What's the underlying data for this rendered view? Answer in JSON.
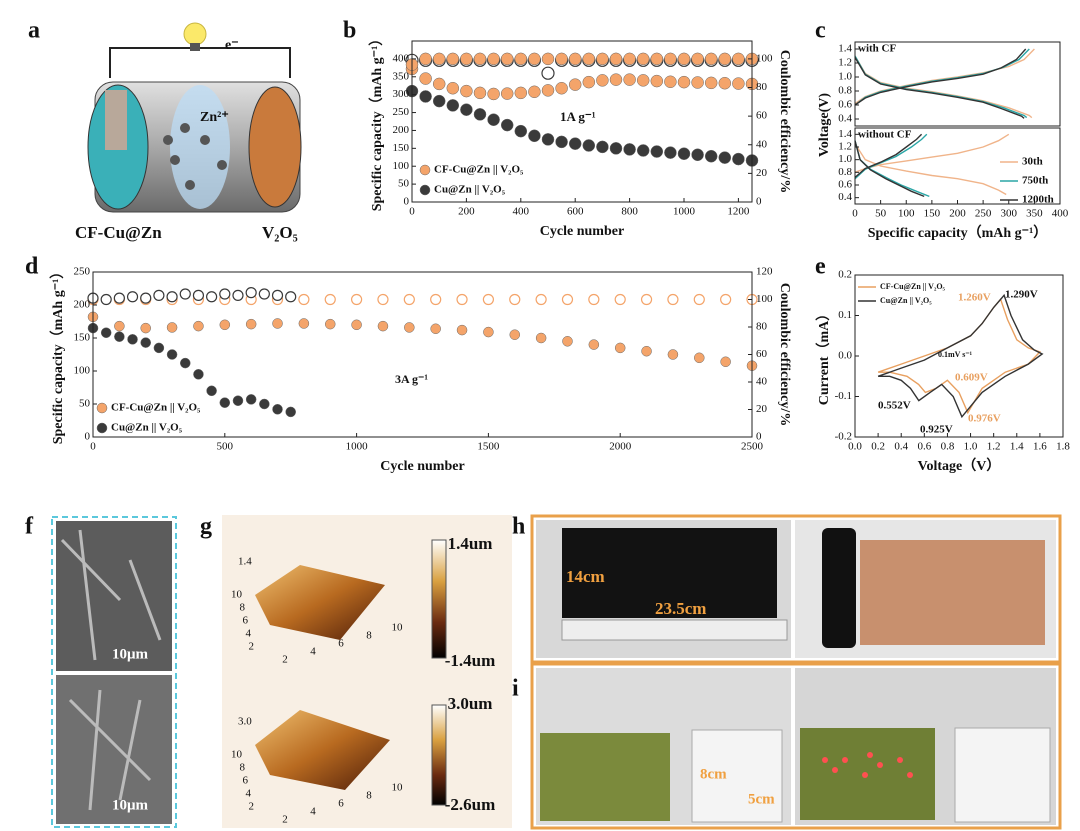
{
  "panel_labels": [
    "a",
    "b",
    "c",
    "d",
    "e",
    "f",
    "g",
    "h",
    "i"
  ],
  "diagram": {
    "electron": "e⁻",
    "ion": "Zn²⁺",
    "anode": "CF-Cu@Zn",
    "cathode": "V₂O₅"
  },
  "chart_data": [
    {
      "type": "scatter",
      "xlabel": "Cycle number",
      "ylabel": "Specific capacity（mAh g⁻¹）",
      "y2label": "Coulombic efficiency/%",
      "annotations": [
        "1A g⁻¹"
      ],
      "x": [
        0,
        50,
        100,
        150,
        200,
        250,
        300,
        350,
        400,
        450,
        500,
        550,
        600,
        650,
        700,
        750,
        800,
        850,
        900,
        950,
        1000,
        1050,
        1100,
        1150,
        1200,
        1250
      ],
      "xlim": [
        0,
        1250
      ],
      "xticks": [
        0,
        200,
        400,
        600,
        800,
        1000,
        1200
      ],
      "ylim": [
        0,
        450
      ],
      "yticks": [
        0,
        50,
        100,
        150,
        200,
        250,
        300,
        350,
        400
      ],
      "y2lim": [
        0,
        112.5
      ],
      "y2ticks": [
        0,
        20,
        40,
        60,
        80,
        100
      ],
      "series": [
        {
          "name": "CF-Cu@Zn || V₂O₅",
          "color": "#f4a46a",
          "values": [
            372,
            345,
            330,
            318,
            310,
            305,
            302,
            303,
            305,
            308,
            312,
            318,
            328,
            335,
            340,
            342,
            342,
            340,
            338,
            336,
            335,
            334,
            333,
            332,
            331,
            330
          ]
        },
        {
          "name": "Cu@Zn || V₂O₅",
          "color": "#3a3a3a",
          "values": [
            310,
            295,
            282,
            270,
            258,
            245,
            230,
            215,
            198,
            185,
            175,
            168,
            163,
            158,
            154,
            150,
            147,
            144,
            141,
            138,
            135,
            132,
            128,
            124,
            120,
            116
          ]
        },
        {
          "color": "#3a3a3a",
          "axis": "y2",
          "marker": "open",
          "values": [
            99,
            99,
            99,
            99,
            99,
            99,
            99,
            99,
            99,
            99,
            90,
            99,
            99,
            99,
            99,
            99,
            99,
            99,
            99,
            99,
            99,
            99,
            99,
            99,
            99,
            99
          ]
        },
        {
          "color": "#f4a46a",
          "axis": "y2",
          "values": [
            96,
            100,
            100,
            100,
            100,
            100,
            100,
            100,
            100,
            100,
            100,
            100,
            100,
            100,
            100,
            100,
            100,
            100,
            100,
            100,
            100,
            100,
            100,
            100,
            100,
            100
          ]
        }
      ]
    },
    {
      "type": "line",
      "label": "with CF",
      "ylabel": "Voltage(V)",
      "xlim": [
        0,
        400
      ],
      "ylim": [
        0.3,
        1.5
      ],
      "yticks": [
        0.4,
        0.6,
        0.8,
        {
          "value": 1,
          "label": "1.0"
        },
        1.2,
        1.4
      ],
      "series": [
        {
          "color": "#f0b48a",
          "x": [
            0,
            20,
            50,
            100,
            150,
            200,
            250,
            300,
            330,
            350,
            null,
            0,
            20,
            50,
            100,
            150,
            200,
            250,
            300,
            340,
            345
          ],
          "values": [
            0.62,
            0.72,
            0.8,
            0.88,
            0.95,
            1,
            1.06,
            1.15,
            1.25,
            1.4,
            null,
            1.3,
            1.05,
            0.92,
            0.84,
            0.79,
            0.73,
            0.66,
            0.56,
            0.45,
            0.42
          ]
        },
        {
          "color": "#2aa6a6",
          "x": [
            0,
            20,
            50,
            100,
            150,
            200,
            250,
            290,
            320,
            340,
            null,
            0,
            20,
            50,
            100,
            150,
            200,
            250,
            290,
            330,
            335
          ],
          "values": [
            0.6,
            0.71,
            0.79,
            0.87,
            0.94,
            0.99,
            1.05,
            1.14,
            1.25,
            1.4,
            null,
            1.3,
            1.04,
            0.91,
            0.83,
            0.78,
            0.72,
            0.65,
            0.56,
            0.45,
            0.42
          ]
        },
        {
          "color": "#333333",
          "x": [
            0,
            20,
            50,
            100,
            150,
            200,
            250,
            285,
            315,
            333,
            null,
            0,
            20,
            50,
            100,
            150,
            200,
            250,
            285,
            325,
            330
          ],
          "values": [
            0.6,
            0.7,
            0.78,
            0.86,
            0.93,
            0.98,
            1.04,
            1.13,
            1.25,
            1.4,
            null,
            1.28,
            1.03,
            0.9,
            0.82,
            0.77,
            0.71,
            0.64,
            0.55,
            0.44,
            0.41
          ]
        }
      ]
    },
    {
      "type": "line",
      "label": "without CF",
      "xlabel": "Specific capacity（mAh g⁻¹）",
      "xlim": [
        0,
        400
      ],
      "xticks": [
        0,
        50,
        100,
        150,
        200,
        250,
        300,
        350,
        400
      ],
      "ylim": [
        0.3,
        1.5
      ],
      "yticks": [
        0.4,
        0.6,
        0.8,
        {
          "value": 1,
          "label": "1.0"
        },
        1.2,
        1.4
      ],
      "series": [
        {
          "name": "30th",
          "color": "#f0b48a",
          "x": [
            0,
            20,
            50,
            100,
            150,
            200,
            250,
            280,
            300,
            null,
            0,
            20,
            50,
            100,
            150,
            200,
            250,
            280,
            295
          ],
          "values": [
            0.8,
            0.86,
            0.92,
            0.98,
            1.04,
            1.1,
            1.2,
            1.3,
            1.4,
            null,
            1.25,
            1,
            0.9,
            0.82,
            0.75,
            0.7,
            0.62,
            0.52,
            0.45
          ]
        },
        {
          "name": "750th",
          "color": "#2aa6a6",
          "x": [
            0,
            20,
            50,
            80,
            110,
            130,
            140,
            null,
            0,
            10,
            30,
            60,
            90,
            120,
            145
          ],
          "values": [
            0.7,
            0.85,
            0.95,
            1.05,
            1.2,
            1.32,
            1.4,
            null,
            1.3,
            1,
            0.85,
            0.72,
            0.6,
            0.5,
            0.42
          ]
        },
        {
          "name": "1200th",
          "color": "#333333",
          "x": [
            0,
            20,
            50,
            80,
            100,
            120,
            130,
            null,
            0,
            10,
            30,
            60,
            90,
            110,
            135
          ],
          "values": [
            0.72,
            0.86,
            0.96,
            1.08,
            1.2,
            1.32,
            1.4,
            null,
            1.3,
            1,
            0.84,
            0.7,
            0.58,
            0.5,
            0.42
          ]
        }
      ]
    },
    {
      "type": "scatter",
      "xlabel": "Cycle number",
      "ylabel": "Specific capacity（mAh g⁻¹）",
      "y2label": "Coulombic efficiency/%",
      "annotations": [
        "3A g⁻¹"
      ],
      "xlim": [
        0,
        2500
      ],
      "xticks": [
        0,
        500,
        1000,
        1500,
        2000,
        2500
      ],
      "ylim": [
        0,
        250
      ],
      "yticks": [
        0,
        50,
        100,
        150,
        200,
        250
      ],
      "y2lim": [
        0,
        120
      ],
      "y2ticks": [
        0,
        20,
        40,
        60,
        80,
        100,
        120
      ],
      "series": [
        {
          "name": "CF-Cu@Zn || V₂O₅",
          "color": "#f4a46a",
          "x": [
            0,
            100,
            200,
            300,
            400,
            500,
            600,
            700,
            800,
            900,
            1000,
            1100,
            1200,
            1300,
            1400,
            1500,
            1600,
            1700,
            1800,
            1900,
            2000,
            2100,
            2200,
            2300,
            2400,
            2500
          ],
          "values": [
            182,
            168,
            165,
            166,
            168,
            170,
            171,
            172,
            172,
            171,
            170,
            168,
            166,
            164,
            162,
            159,
            155,
            150,
            145,
            140,
            135,
            130,
            125,
            120,
            114,
            108
          ]
        },
        {
          "color": "#f4a46a",
          "axis": "y2",
          "marker": "open",
          "x": [
            0,
            100,
            200,
            300,
            400,
            500,
            600,
            700,
            800,
            900,
            1000,
            1100,
            1200,
            1300,
            1400,
            1500,
            1600,
            1700,
            1800,
            1900,
            2000,
            2100,
            2200,
            2300,
            2400,
            2500
          ],
          "values": [
            100,
            100,
            100,
            100,
            100,
            100,
            100,
            100,
            100,
            100,
            100,
            100,
            100,
            100,
            100,
            100,
            100,
            100,
            100,
            100,
            100,
            100,
            100,
            100,
            100,
            100
          ]
        },
        {
          "name": "Cu@Zn || V₂O₅",
          "color": "#3a3a3a",
          "x": [
            0,
            50,
            100,
            150,
            200,
            250,
            300,
            350,
            400,
            450,
            500,
            550,
            600,
            650,
            700,
            750
          ],
          "values": [
            165,
            158,
            152,
            148,
            143,
            135,
            125,
            112,
            95,
            70,
            52,
            55,
            57,
            50,
            42,
            38
          ]
        },
        {
          "color": "#3a3a3a",
          "axis": "y2",
          "marker": "open",
          "x": [
            0,
            50,
            100,
            150,
            200,
            250,
            300,
            350,
            400,
            450,
            500,
            550,
            600,
            650,
            700,
            750
          ],
          "values": [
            101,
            100,
            101,
            102,
            101,
            103,
            102,
            104,
            103,
            102,
            104,
            103,
            105,
            104,
            103,
            102
          ]
        }
      ]
    },
    {
      "type": "line",
      "xlabel": "Voltage（V）",
      "ylabel": "Current（mA）",
      "annotations": [
        "1.290V",
        "1.260V",
        "0.609V",
        "0.552V",
        "0.925V",
        "0.976V",
        "0.1mV s⁻¹"
      ],
      "xlim": [
        0,
        1.8
      ],
      "xticks": [
        {
          "value": 0,
          "label": "0.0"
        },
        0.2,
        0.4,
        0.6,
        0.8,
        {
          "value": 1,
          "label": "1.0"
        },
        1.2,
        1.4,
        1.6,
        1.8
      ],
      "ylim": [
        -0.2,
        0.2
      ],
      "yticks": [
        -0.2,
        -0.1,
        {
          "value": 0,
          "label": "0.0"
        },
        0.1,
        0.2
      ],
      "series": [
        {
          "name": "CF-Cu@Zn || V₂O₅",
          "color": "#e8a060",
          "x": [
            0.2,
            0.4,
            0.6,
            0.8,
            1,
            1.1,
            1.2,
            1.26,
            1.32,
            1.4,
            1.5,
            1.6,
            1.5,
            1.3,
            1.1,
            0.976,
            0.9,
            0.8,
            0.7,
            0.609,
            0.55,
            0.45,
            0.3,
            0.2
          ],
          "values": [
            -0.04,
            -0.02,
            0,
            0.02,
            0.05,
            0.08,
            0.12,
            0.14,
            0.09,
            0.04,
            0.02,
            0.01,
            -0.02,
            -0.04,
            -0.08,
            -0.14,
            -0.09,
            -0.06,
            -0.08,
            -0.09,
            -0.07,
            -0.05,
            -0.04,
            -0.04
          ]
        },
        {
          "name": "Cu@Zn || V₂O₅",
          "color": "#333333",
          "x": [
            0.2,
            0.4,
            0.6,
            0.8,
            1,
            1.1,
            1.2,
            1.29,
            1.35,
            1.45,
            1.55,
            1.62,
            1.5,
            1.3,
            1.1,
            0.925,
            0.85,
            0.75,
            0.65,
            0.552,
            0.48,
            0.4,
            0.3,
            0.2
          ],
          "values": [
            -0.05,
            -0.03,
            -0.01,
            0.02,
            0.05,
            0.08,
            0.12,
            0.15,
            0.1,
            0.04,
            0.015,
            0.005,
            -0.02,
            -0.05,
            -0.09,
            -0.15,
            -0.1,
            -0.07,
            -0.09,
            -0.11,
            -0.08,
            -0.06,
            -0.05,
            -0.05
          ]
        }
      ]
    }
  ],
  "images": {
    "f": {
      "scale_bars": [
        "10μm",
        "10μm"
      ]
    },
    "g": {
      "top": {
        "z_max": "1.4",
        "y_ticks": [
          "10",
          "8",
          "6",
          "4",
          "2"
        ],
        "x_ticks": [
          "2",
          "4",
          "6",
          "8",
          "10"
        ],
        "colorbar": [
          "1.4um",
          "-1.4um"
        ]
      },
      "bottom": {
        "z_max": "3.0",
        "y_ticks": [
          "10",
          "8",
          "6",
          "4",
          "2"
        ],
        "x_ticks": [
          "2",
          "4",
          "6",
          "8",
          "10"
        ],
        "colorbar": [
          "3.0um",
          "-2.6um"
        ]
      }
    },
    "h": {
      "height": "14cm",
      "width": "23.5cm"
    },
    "i": {
      "height": "8cm",
      "width": "5cm"
    }
  }
}
